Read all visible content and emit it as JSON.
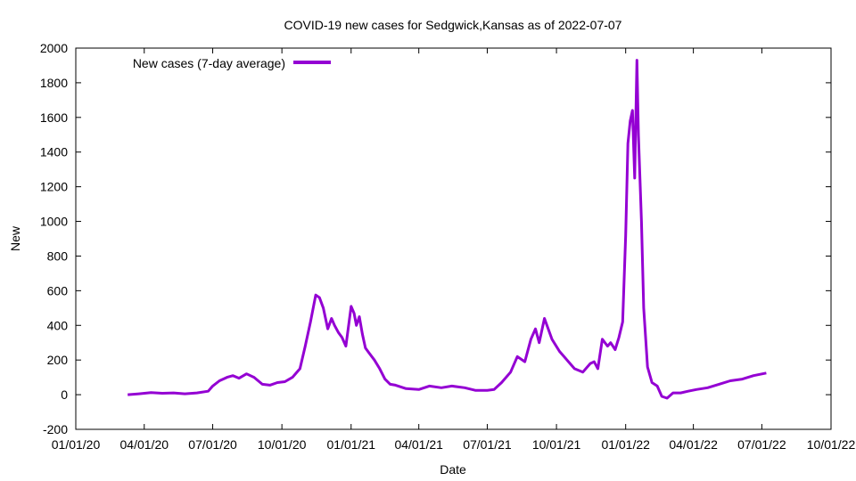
{
  "chart_data": {
    "type": "line",
    "title": "COVID-19 new cases for Sedgwick,Kansas as of 2022-07-07",
    "xlabel": "Date",
    "ylabel": "New",
    "xlim": [
      "2020-01-01",
      "2022-10-01"
    ],
    "ylim": [
      -200,
      2000
    ],
    "x_ticks": [
      "01/01/20",
      "04/01/20",
      "07/01/20",
      "10/01/20",
      "01/01/21",
      "04/01/21",
      "07/01/21",
      "10/01/21",
      "01/01/22",
      "04/01/22",
      "07/01/22",
      "10/01/22"
    ],
    "y_ticks": [
      -200,
      0,
      200,
      400,
      600,
      800,
      1000,
      1200,
      1400,
      1600,
      1800,
      2000
    ],
    "grid": false,
    "legend_position": "top-left",
    "series": [
      {
        "name": "New cases (7-day average)",
        "color": "#9400d3",
        "x": [
          "2020-03-10",
          "2020-03-25",
          "2020-04-10",
          "2020-04-25",
          "2020-05-10",
          "2020-05-25",
          "2020-06-10",
          "2020-06-25",
          "2020-07-01",
          "2020-07-10",
          "2020-07-20",
          "2020-07-28",
          "2020-08-05",
          "2020-08-15",
          "2020-08-25",
          "2020-09-05",
          "2020-09-15",
          "2020-09-25",
          "2020-10-05",
          "2020-10-15",
          "2020-10-25",
          "2020-11-01",
          "2020-11-08",
          "2020-11-15",
          "2020-11-20",
          "2020-11-25",
          "2020-12-01",
          "2020-12-06",
          "2020-12-10",
          "2020-12-15",
          "2020-12-20",
          "2020-12-25",
          "2021-01-01",
          "2021-01-05",
          "2021-01-08",
          "2021-01-12",
          "2021-01-16",
          "2021-01-20",
          "2021-01-25",
          "2021-02-01",
          "2021-02-08",
          "2021-02-15",
          "2021-02-22",
          "2021-03-01",
          "2021-03-15",
          "2021-04-01",
          "2021-04-15",
          "2021-05-01",
          "2021-05-15",
          "2021-06-01",
          "2021-06-15",
          "2021-07-01",
          "2021-07-10",
          "2021-07-20",
          "2021-08-01",
          "2021-08-10",
          "2021-08-20",
          "2021-08-28",
          "2021-09-03",
          "2021-09-08",
          "2021-09-15",
          "2021-09-25",
          "2021-10-05",
          "2021-10-15",
          "2021-10-25",
          "2021-11-05",
          "2021-11-15",
          "2021-11-20",
          "2021-11-25",
          "2021-12-01",
          "2021-12-08",
          "2021-12-12",
          "2021-12-18",
          "2021-12-23",
          "2021-12-28",
          "2022-01-01",
          "2022-01-04",
          "2022-01-07",
          "2022-01-10",
          "2022-01-13",
          "2022-01-16",
          "2022-01-18",
          "2022-01-20",
          "2022-01-22",
          "2022-01-25",
          "2022-01-30",
          "2022-02-05",
          "2022-02-12",
          "2022-02-18",
          "2022-02-25",
          "2022-03-05",
          "2022-03-15",
          "2022-03-25",
          "2022-04-05",
          "2022-04-20",
          "2022-05-05",
          "2022-05-20",
          "2022-06-05",
          "2022-06-20",
          "2022-07-07"
        ],
        "values": [
          0,
          5,
          12,
          8,
          10,
          5,
          10,
          20,
          50,
          80,
          100,
          110,
          95,
          120,
          100,
          60,
          55,
          70,
          75,
          100,
          150,
          280,
          420,
          575,
          560,
          500,
          380,
          440,
          400,
          360,
          330,
          280,
          510,
          470,
          400,
          450,
          350,
          270,
          240,
          200,
          150,
          90,
          60,
          55,
          35,
          30,
          50,
          40,
          50,
          40,
          25,
          25,
          30,
          70,
          130,
          220,
          190,
          320,
          380,
          300,
          440,
          320,
          250,
          200,
          150,
          130,
          180,
          190,
          150,
          320,
          280,
          300,
          260,
          330,
          420,
          920,
          1450,
          1580,
          1640,
          1250,
          1930,
          1500,
          1250,
          1000,
          500,
          160,
          70,
          50,
          -10,
          -20,
          10,
          10,
          20,
          30,
          40,
          60,
          80,
          90,
          110,
          125
        ]
      }
    ]
  }
}
